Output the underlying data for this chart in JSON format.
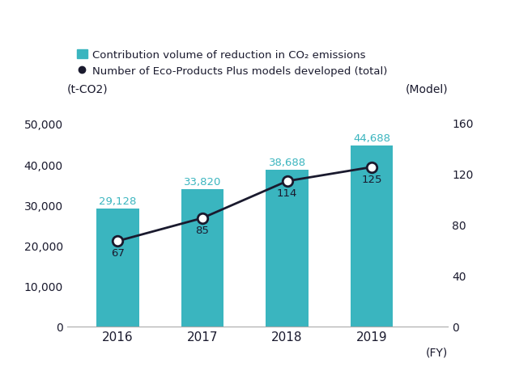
{
  "years": [
    2016,
    2017,
    2018,
    2019
  ],
  "co2_values": [
    29128,
    33820,
    38688,
    44688
  ],
  "model_values": [
    67,
    85,
    114,
    125
  ],
  "bar_color": "#3ab5bf",
  "line_color": "#1a1a2e",
  "text_color": "#1a1a2e",
  "bar_label_color": "#3ab5bf",
  "model_label_color": "#1a1a2e",
  "left_ylabel": "(t-CO2)",
  "right_ylabel": "(Model)",
  "xlabel": "(FY)",
  "left_ylim": [
    0,
    55000
  ],
  "right_ylim": [
    0,
    175
  ],
  "left_yticks": [
    0,
    10000,
    20000,
    30000,
    40000,
    50000
  ],
  "right_yticks": [
    0,
    40,
    80,
    120,
    160
  ],
  "legend_bar_label": "Contribution volume of reduction in CO₂ emissions",
  "legend_line_label": "Number of Eco-Products Plus models developed (total)",
  "bar_width": 0.5
}
